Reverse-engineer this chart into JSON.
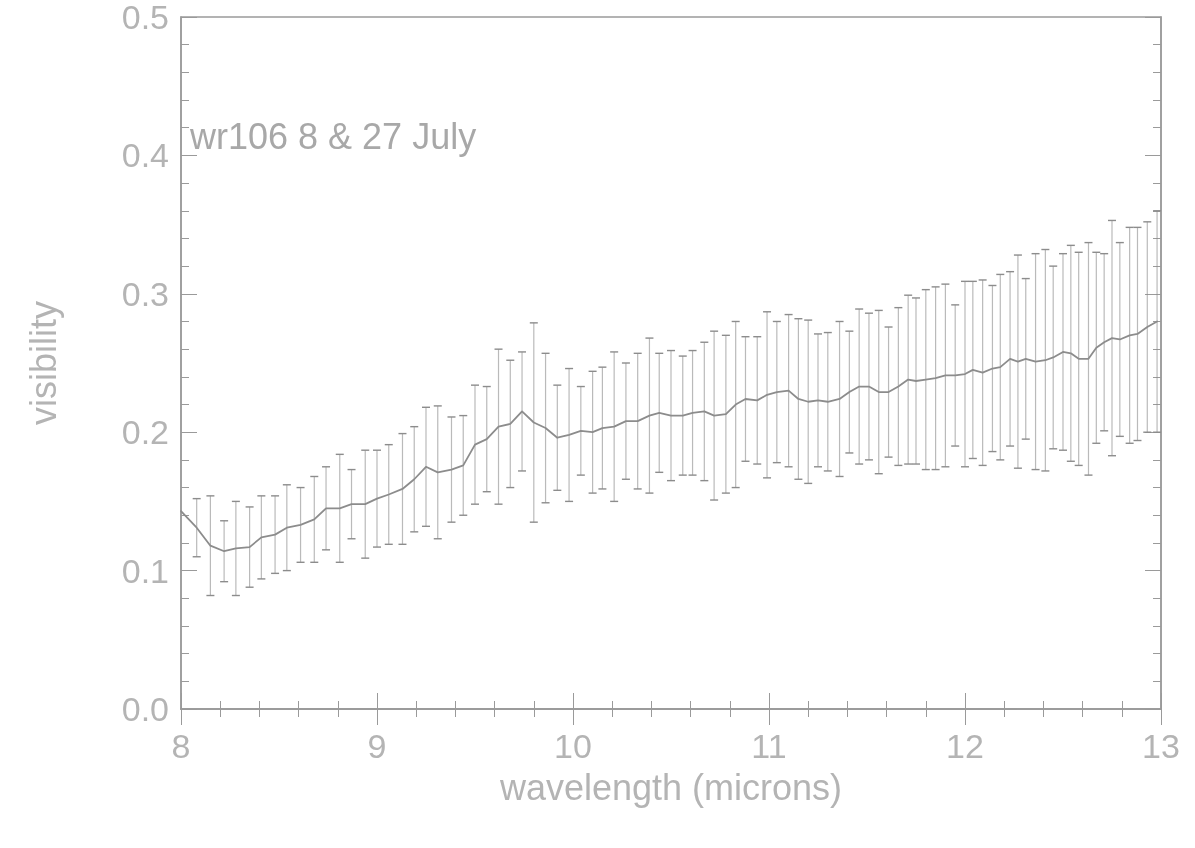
{
  "chart_data": {
    "type": "line",
    "xlabel": "wavelength (microns)",
    "ylabel": "visibility",
    "annotations": [
      "wr106 8 & 27 July"
    ],
    "xlim": [
      8,
      13
    ],
    "xticks": [
      8,
      9,
      10,
      11,
      12,
      13
    ],
    "ylim": [
      0,
      0.5
    ],
    "yticks": [
      {
        "value": 0,
        "label": "0.0"
      },
      {
        "value": 0.1,
        "label": "0.1"
      },
      {
        "value": 0.2,
        "label": "0.2"
      },
      {
        "value": 0.3,
        "label": "0.3"
      },
      {
        "value": 0.4,
        "label": "0.4"
      },
      {
        "value": 0.5,
        "label": "0.5"
      }
    ],
    "grid": false,
    "marker": "none",
    "line_style": "solid",
    "series": [
      {
        "color": "#8c8c8c",
        "x": [
          8.0,
          8.08,
          8.15,
          8.22,
          8.28,
          8.35,
          8.41,
          8.48,
          8.54,
          8.61,
          8.68,
          8.74,
          8.81,
          8.87,
          8.94,
          9.0,
          9.06,
          9.13,
          9.19,
          9.25,
          9.31,
          9.38,
          9.44,
          9.5,
          9.56,
          9.62,
          9.68,
          9.74,
          9.8,
          9.86,
          9.92,
          9.98,
          10.04,
          10.1,
          10.15,
          10.21,
          10.27,
          10.33,
          10.39,
          10.44,
          10.5,
          10.56,
          10.61,
          10.67,
          10.72,
          10.78,
          10.83,
          10.88,
          10.94,
          10.99,
          11.04,
          11.1,
          11.15,
          11.2,
          11.25,
          11.3,
          11.36,
          11.41,
          11.46,
          11.51,
          11.56,
          11.61,
          11.66,
          11.71,
          11.75,
          11.8,
          11.85,
          11.9,
          11.95,
          12.0,
          12.04,
          12.09,
          12.14,
          12.18,
          12.23,
          12.27,
          12.31,
          12.36,
          12.41,
          12.45,
          12.5,
          12.54,
          12.58,
          12.63,
          12.67,
          12.71,
          12.75,
          12.79,
          12.84,
          12.88,
          12.93,
          12.98
        ],
        "values": [
          0.143,
          0.131,
          0.118,
          0.114,
          0.116,
          0.117,
          0.124,
          0.126,
          0.131,
          0.133,
          0.137,
          0.145,
          0.145,
          0.148,
          0.148,
          0.152,
          0.155,
          0.159,
          0.166,
          0.175,
          0.171,
          0.173,
          0.176,
          0.191,
          0.195,
          0.204,
          0.206,
          0.215,
          0.207,
          0.203,
          0.196,
          0.198,
          0.201,
          0.2,
          0.203,
          0.204,
          0.208,
          0.208,
          0.212,
          0.214,
          0.212,
          0.212,
          0.214,
          0.215,
          0.212,
          0.213,
          0.22,
          0.224,
          0.223,
          0.227,
          0.229,
          0.23,
          0.224,
          0.222,
          0.223,
          0.222,
          0.224,
          0.229,
          0.233,
          0.233,
          0.229,
          0.229,
          0.233,
          0.238,
          0.237,
          0.238,
          0.239,
          0.241,
          0.241,
          0.242,
          0.245,
          0.243,
          0.246,
          0.247,
          0.253,
          0.251,
          0.253,
          0.251,
          0.252,
          0.254,
          0.258,
          0.257,
          0.253,
          0.253,
          0.261,
          0.265,
          0.268,
          0.267,
          0.27,
          0.271,
          0.276,
          0.28
        ],
        "errors": [
          null,
          0.021,
          0.036,
          0.022,
          0.034,
          0.029,
          0.03,
          0.028,
          0.031,
          0.027,
          0.031,
          0.03,
          0.039,
          0.025,
          0.039,
          0.035,
          0.036,
          0.04,
          0.038,
          0.043,
          0.048,
          0.038,
          0.036,
          0.043,
          0.038,
          0.056,
          0.046,
          0.043,
          0.072,
          0.054,
          0.038,
          0.048,
          0.032,
          0.044,
          0.044,
          0.054,
          0.042,
          0.049,
          0.056,
          0.043,
          0.047,
          0.043,
          0.045,
          0.05,
          0.061,
          0.057,
          0.06,
          0.045,
          0.046,
          0.06,
          0.051,
          0.055,
          0.058,
          0.059,
          0.048,
          0.05,
          0.056,
          0.044,
          0.056,
          0.053,
          0.059,
          0.047,
          0.057,
          0.061,
          0.06,
          0.065,
          0.066,
          0.066,
          0.051,
          0.067,
          0.064,
          0.067,
          0.06,
          0.067,
          0.063,
          0.077,
          0.058,
          0.078,
          0.08,
          0.066,
          0.071,
          0.078,
          0.077,
          0.084,
          0.069,
          0.064,
          0.085,
          0.07,
          0.078,
          0.077,
          0.076,
          0.08
        ]
      }
    ]
  }
}
